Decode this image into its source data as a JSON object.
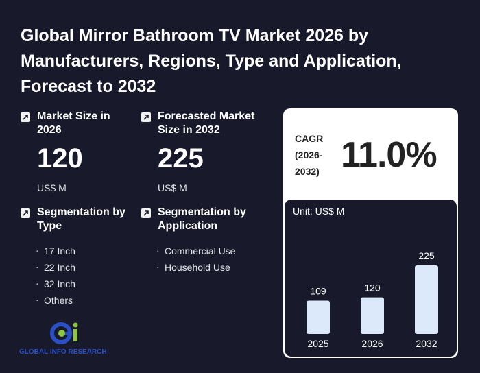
{
  "title": "Global Mirror Bathroom TV Market 2026 by Manufacturers, Regions, Type and Application, Forecast to 2032",
  "market_size": {
    "label": "Market Size in 2026",
    "value": "120",
    "unit": "US$ M"
  },
  "forecast": {
    "label": "Forecasted Market Size in 2032",
    "value": "225",
    "unit": "US$ M"
  },
  "segmentation_type": {
    "label": "Segmentation by Type",
    "items": [
      "17 Inch",
      "22 Inch",
      "32 Inch",
      "Others"
    ]
  },
  "segmentation_app": {
    "label": "Segmentation by Application",
    "items": [
      "Commercial Use",
      "Household Use"
    ]
  },
  "cagr": {
    "label_line1": "CAGR",
    "label_line2": "(2026-",
    "label_line3": "2032)",
    "value": "11.0%"
  },
  "logo_text": "GLOBAL INFO RESEARCH",
  "colors": {
    "background": "#181a2c",
    "bar": "#dbe9fb",
    "card": "#ffffff",
    "logo_blue": "#2b4fc4",
    "logo_green": "#8dc63f"
  },
  "chart_data": {
    "type": "bar",
    "unit_label": "Unit: US$ M",
    "categories": [
      "2025",
      "2026",
      "2032"
    ],
    "values": [
      109,
      120,
      225
    ],
    "ylim": [
      0,
      225
    ],
    "grid": false
  }
}
